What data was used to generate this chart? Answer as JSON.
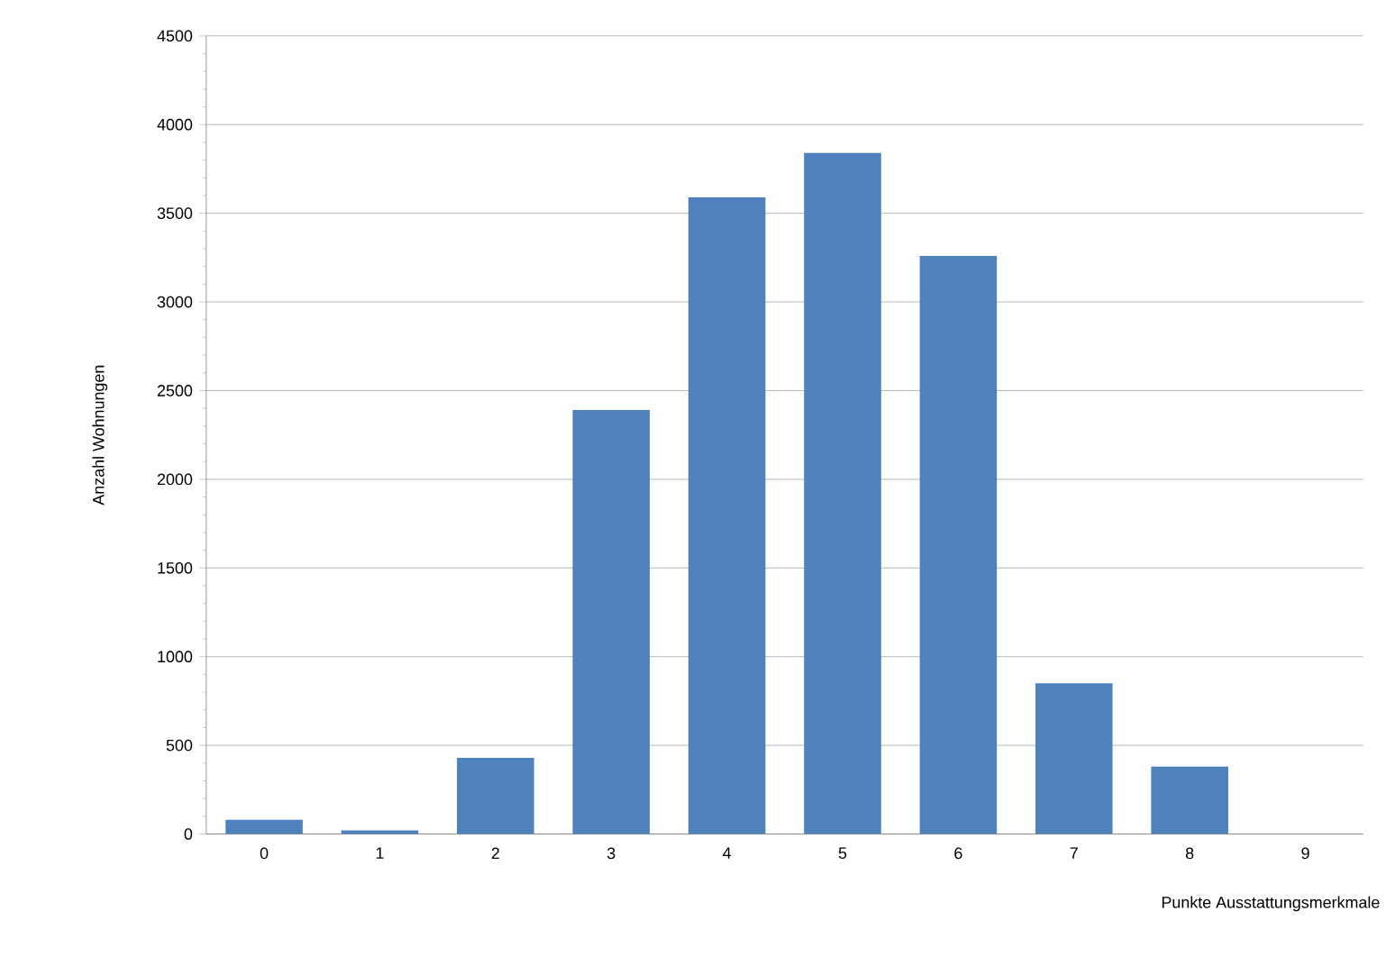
{
  "chart_data": {
    "type": "bar",
    "xlabel": "Punkte Ausstattungsmerkmale",
    "ylabel": "Anzahl Wohnungen",
    "categories": [
      "0",
      "1",
      "2",
      "3",
      "4",
      "5",
      "6",
      "7",
      "8",
      "9"
    ],
    "values": [
      80,
      20,
      430,
      2390,
      3590,
      3840,
      3260,
      850,
      380,
      0
    ],
    "color": "#4f81bd",
    "ylim": [
      0,
      4500
    ],
    "yticks": [
      0,
      500,
      1000,
      1500,
      2000,
      2500,
      3000,
      3500,
      4000,
      4500
    ],
    "grid": "y"
  }
}
